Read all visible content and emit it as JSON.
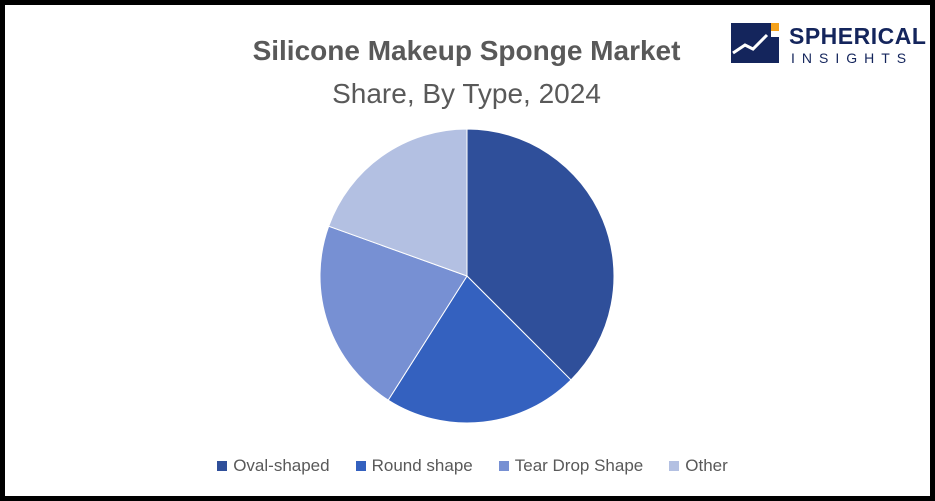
{
  "chart_data": {
    "type": "pie",
    "title": "Silicone Makeup Sponge Market",
    "subtitle": "Share, By Type, 2024",
    "categories": [
      "Oval-shaped",
      "Round shape",
      "Tear Drop Shape",
      "Other"
    ],
    "values": [
      37.5,
      21.5,
      21.5,
      19.5
    ],
    "colors": [
      "#2f4f9a",
      "#3461bf",
      "#7790d3",
      "#b3c0e2"
    ],
    "legend_position": "bottom"
  },
  "brand": {
    "name_line1": "SPHERICAL",
    "name_line2": "INSIGHTS",
    "color": "#14255c",
    "accent": "#f5a21b"
  }
}
